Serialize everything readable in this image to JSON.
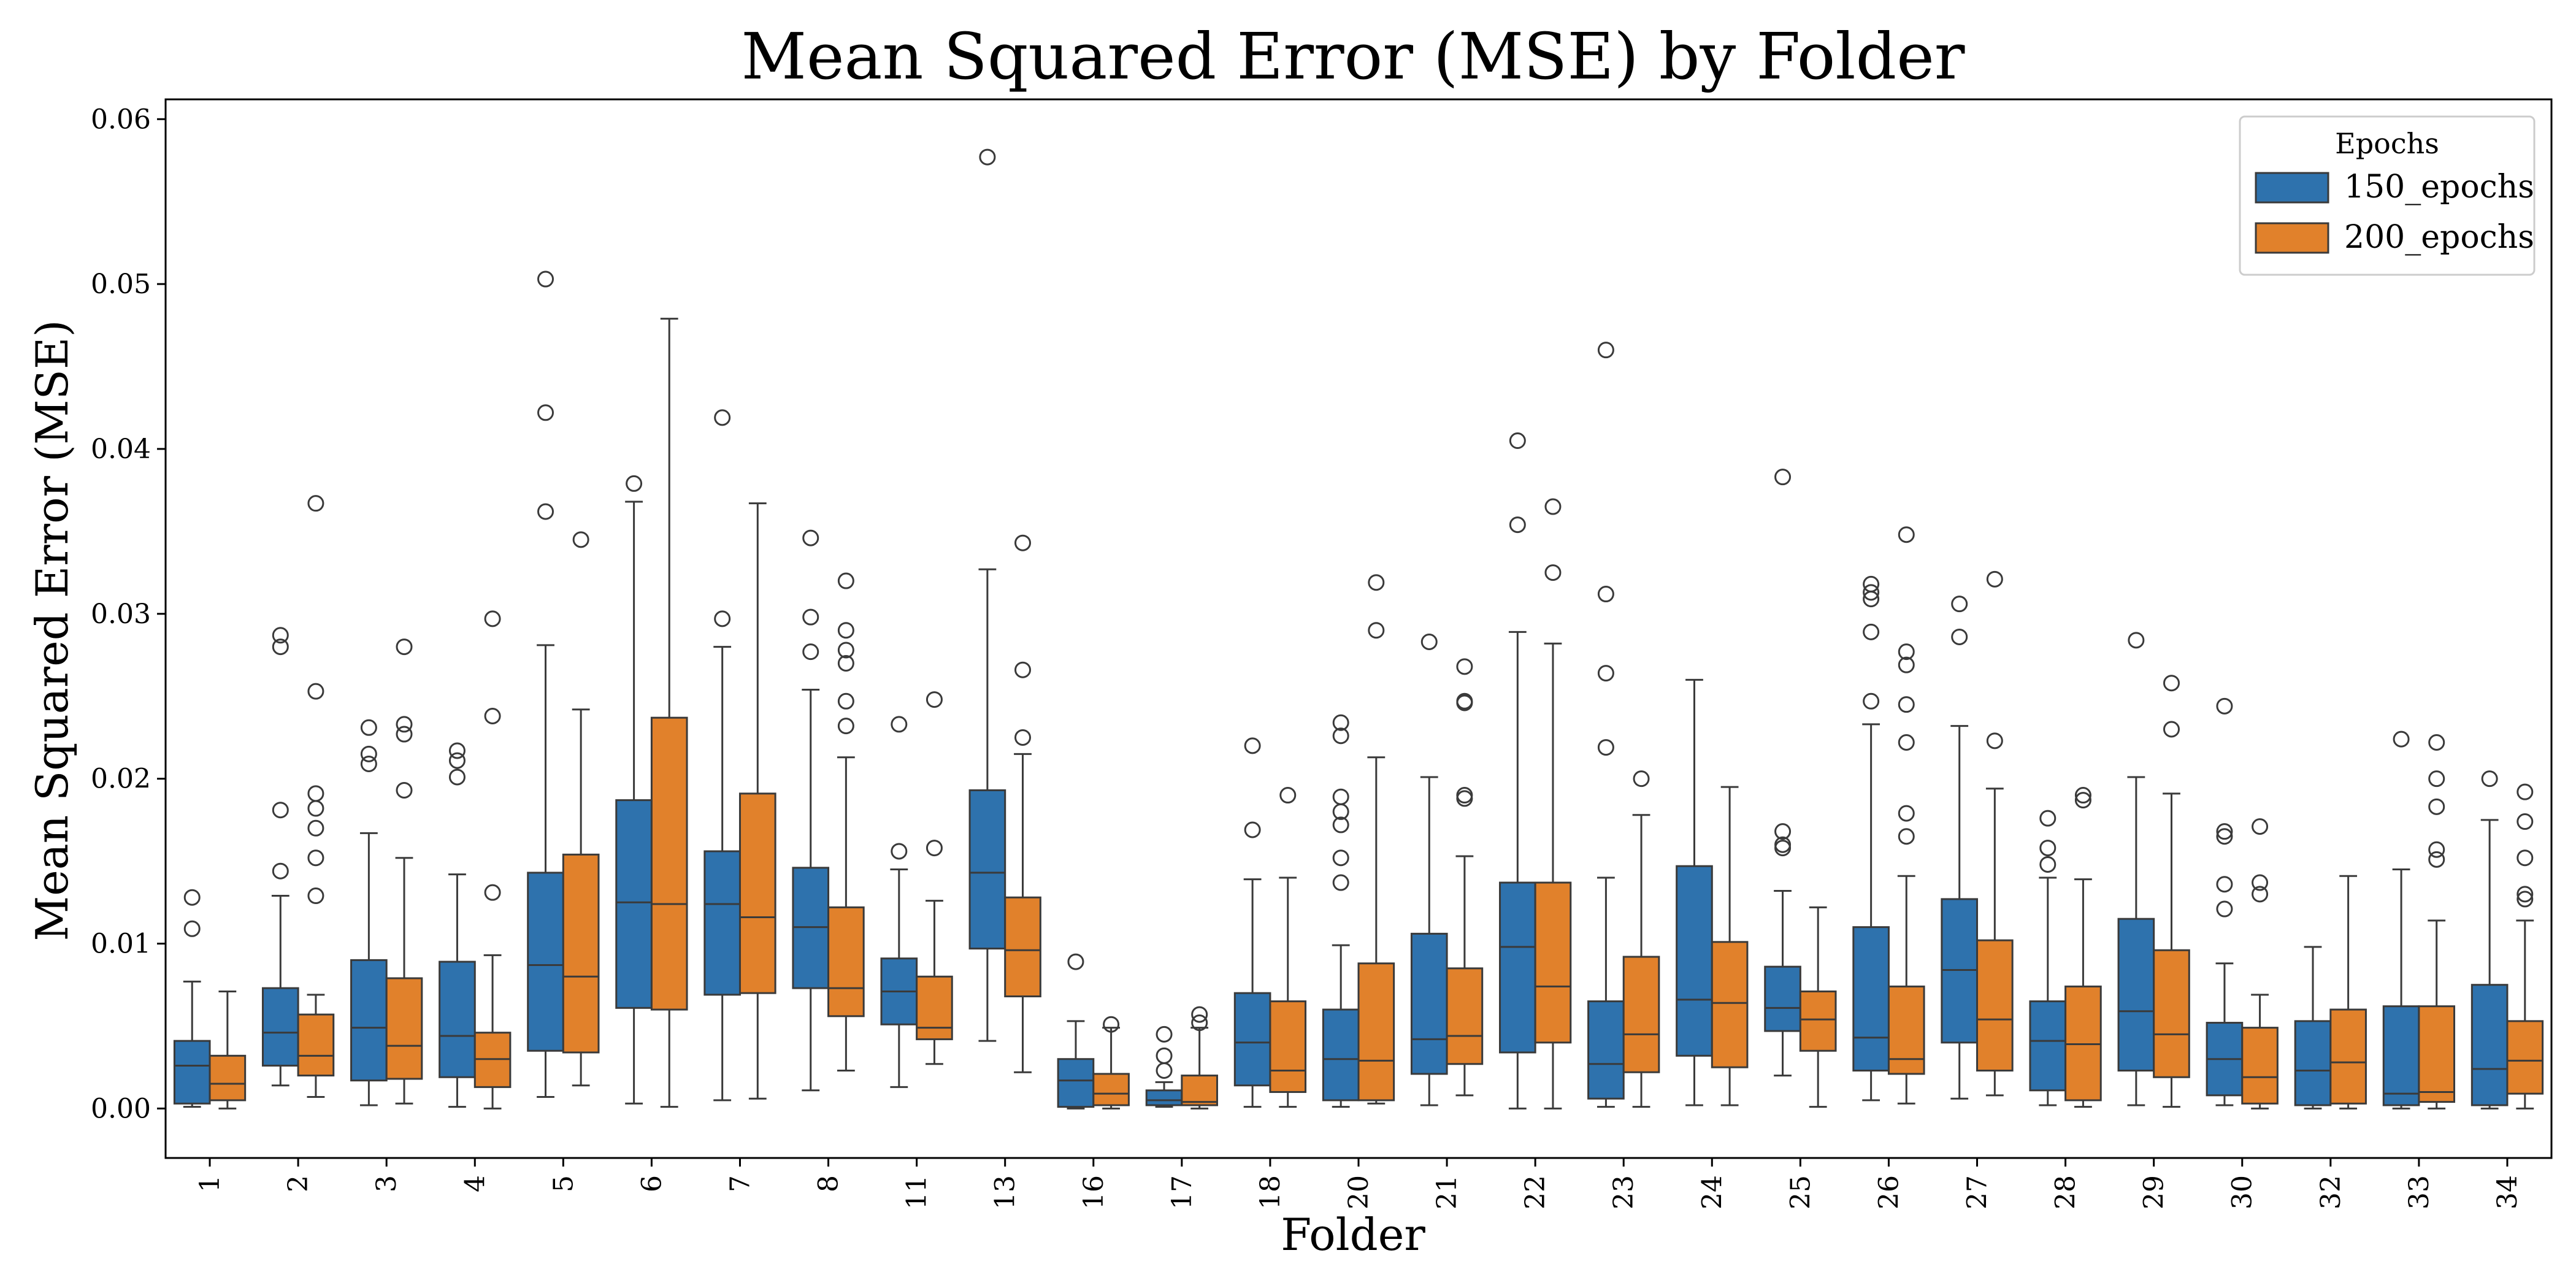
{
  "chart_data": {
    "type": "boxplot",
    "title": "Mean Squared Error (MSE) by Folder",
    "xlabel": "Folder",
    "ylabel": "Mean Squared Error (MSE)",
    "ylim": [
      -0.003,
      0.0612
    ],
    "yticks": [
      "0.00",
      "0.01",
      "0.02",
      "0.03",
      "0.04",
      "0.05",
      "0.06"
    ],
    "ytick_values": [
      0,
      0.01,
      0.02,
      0.03,
      0.04,
      0.05,
      0.06
    ],
    "grid": false,
    "legend": {
      "title": "Epochs",
      "position": "top-right"
    },
    "categories": [
      "1",
      "2",
      "3",
      "4",
      "5",
      "6",
      "7",
      "8",
      "11",
      "13",
      "16",
      "17",
      "18",
      "20",
      "21",
      "22",
      "23",
      "24",
      "25",
      "26",
      "27",
      "28",
      "29",
      "30",
      "32",
      "33",
      "34"
    ],
    "series": [
      {
        "name": "150_epochs",
        "color": "#2e72ad",
        "boxes": [
          {
            "low": 0.0001,
            "q1": 0.0003,
            "median": 0.0026,
            "q3": 0.0041,
            "high": 0.0077,
            "outliers": [
              0.0109,
              0.0128
            ]
          },
          {
            "low": 0.0014,
            "q1": 0.0026,
            "median": 0.0046,
            "q3": 0.0073,
            "high": 0.0129,
            "outliers": [
              0.0144,
              0.0181,
              0.028,
              0.0287
            ]
          },
          {
            "low": 0.0002,
            "q1": 0.0017,
            "median": 0.0049,
            "q3": 0.009,
            "high": 0.0167,
            "outliers": [
              0.0209,
              0.0215,
              0.0231
            ]
          },
          {
            "low": 0.0001,
            "q1": 0.0019,
            "median": 0.0044,
            "q3": 0.0089,
            "high": 0.0142,
            "outliers": [
              0.0201,
              0.0211,
              0.0217
            ]
          },
          {
            "low": 0.0007,
            "q1": 0.0035,
            "median": 0.0087,
            "q3": 0.0143,
            "high": 0.0281,
            "outliers": [
              0.0362,
              0.0422,
              0.0503
            ]
          },
          {
            "low": 0.0003,
            "q1": 0.0061,
            "median": 0.0125,
            "q3": 0.0187,
            "high": 0.0368,
            "outliers": [
              0.0379
            ]
          },
          {
            "low": 0.0005,
            "q1": 0.0069,
            "median": 0.0124,
            "q3": 0.0156,
            "high": 0.028,
            "outliers": [
              0.0297,
              0.0419
            ]
          },
          {
            "low": 0.0011,
            "q1": 0.0073,
            "median": 0.011,
            "q3": 0.0146,
            "high": 0.0254,
            "outliers": [
              0.0277,
              0.0298,
              0.0346
            ]
          },
          {
            "low": 0.0013,
            "q1": 0.0051,
            "median": 0.0071,
            "q3": 0.0091,
            "high": 0.0145,
            "outliers": [
              0.0156,
              0.0233
            ]
          },
          {
            "low": 0.0041,
            "q1": 0.0097,
            "median": 0.0143,
            "q3": 0.0193,
            "high": 0.0327,
            "outliers": [
              0.0577
            ]
          },
          {
            "low": 0.0,
            "q1": 0.0001,
            "median": 0.0017,
            "q3": 0.003,
            "high": 0.0053,
            "outliers": [
              0.0089
            ]
          },
          {
            "low": 0.0001,
            "q1": 0.0002,
            "median": 0.0005,
            "q3": 0.0011,
            "high": 0.0016,
            "outliers": [
              0.0023,
              0.0032,
              0.0045
            ]
          },
          {
            "low": 0.0001,
            "q1": 0.0014,
            "median": 0.004,
            "q3": 0.007,
            "high": 0.0139,
            "outliers": [
              0.0169,
              0.022
            ]
          },
          {
            "low": 0.0001,
            "q1": 0.0005,
            "median": 0.003,
            "q3": 0.006,
            "high": 0.0099,
            "outliers": [
              0.0137,
              0.0152,
              0.0172,
              0.018,
              0.0189,
              0.0226,
              0.0234
            ]
          },
          {
            "low": 0.0002,
            "q1": 0.0021,
            "median": 0.0042,
            "q3": 0.0106,
            "high": 0.0201,
            "outliers": [
              0.0283
            ]
          },
          {
            "low": 0.0,
            "q1": 0.0034,
            "median": 0.0098,
            "q3": 0.0137,
            "high": 0.0289,
            "outliers": [
              0.0354,
              0.0405
            ]
          },
          {
            "low": 0.0001,
            "q1": 0.0006,
            "median": 0.0027,
            "q3": 0.0065,
            "high": 0.014,
            "outliers": [
              0.0219,
              0.0264,
              0.0312,
              0.046
            ]
          },
          {
            "low": 0.0002,
            "q1": 0.0032,
            "median": 0.0066,
            "q3": 0.0147,
            "high": 0.026,
            "outliers": []
          },
          {
            "low": 0.002,
            "q1": 0.0047,
            "median": 0.0061,
            "q3": 0.0086,
            "high": 0.0132,
            "outliers": [
              0.0158,
              0.016,
              0.0168,
              0.0383
            ]
          },
          {
            "low": 0.0005,
            "q1": 0.0023,
            "median": 0.0043,
            "q3": 0.011,
            "high": 0.0233,
            "outliers": [
              0.0247,
              0.0289,
              0.0309,
              0.0313,
              0.0318
            ]
          },
          {
            "low": 0.0006,
            "q1": 0.004,
            "median": 0.0084,
            "q3": 0.0127,
            "high": 0.0232,
            "outliers": [
              0.0286,
              0.0306
            ]
          },
          {
            "low": 0.0002,
            "q1": 0.0011,
            "median": 0.0041,
            "q3": 0.0065,
            "high": 0.014,
            "outliers": [
              0.0148,
              0.0158,
              0.0176
            ]
          },
          {
            "low": 0.0002,
            "q1": 0.0023,
            "median": 0.0059,
            "q3": 0.0115,
            "high": 0.0201,
            "outliers": [
              0.0284
            ]
          },
          {
            "low": 0.0002,
            "q1": 0.0008,
            "median": 0.003,
            "q3": 0.0052,
            "high": 0.0088,
            "outliers": [
              0.0121,
              0.0136,
              0.0165,
              0.0168,
              0.0244
            ]
          },
          {
            "low": 0.0,
            "q1": 0.0002,
            "median": 0.0023,
            "q3": 0.0053,
            "high": 0.0098,
            "outliers": []
          },
          {
            "low": 0.0,
            "q1": 0.0002,
            "median": 0.0009,
            "q3": 0.0062,
            "high": 0.0145,
            "outliers": [
              0.0224
            ]
          },
          {
            "low": 0.0,
            "q1": 0.0002,
            "median": 0.0024,
            "q3": 0.0075,
            "high": 0.0175,
            "outliers": [
              0.02
            ]
          }
        ]
      },
      {
        "name": "200_epochs",
        "color": "#e1812b",
        "boxes": [
          {
            "low": 0.0,
            "q1": 0.0005,
            "median": 0.0015,
            "q3": 0.0032,
            "high": 0.0071,
            "outliers": []
          },
          {
            "low": 0.0007,
            "q1": 0.002,
            "median": 0.0032,
            "q3": 0.0057,
            "high": 0.0069,
            "outliers": [
              0.0129,
              0.0152,
              0.017,
              0.0182,
              0.0191,
              0.0253,
              0.0367
            ]
          },
          {
            "low": 0.0003,
            "q1": 0.0018,
            "median": 0.0038,
            "q3": 0.0079,
            "high": 0.0152,
            "outliers": [
              0.0193,
              0.0227,
              0.0233,
              0.028
            ]
          },
          {
            "low": 0.0,
            "q1": 0.0013,
            "median": 0.003,
            "q3": 0.0046,
            "high": 0.0093,
            "outliers": [
              0.0131,
              0.0238,
              0.0297
            ]
          },
          {
            "low": 0.0014,
            "q1": 0.0034,
            "median": 0.008,
            "q3": 0.0154,
            "high": 0.0242,
            "outliers": [
              0.0345
            ]
          },
          {
            "low": 0.0001,
            "q1": 0.006,
            "median": 0.0124,
            "q3": 0.0237,
            "high": 0.0479,
            "outliers": []
          },
          {
            "low": 0.0006,
            "q1": 0.007,
            "median": 0.0116,
            "q3": 0.0191,
            "high": 0.0367,
            "outliers": []
          },
          {
            "low": 0.0023,
            "q1": 0.0056,
            "median": 0.0073,
            "q3": 0.0122,
            "high": 0.0213,
            "outliers": [
              0.0232,
              0.0247,
              0.027,
              0.0278,
              0.029,
              0.032
            ]
          },
          {
            "low": 0.0027,
            "q1": 0.0042,
            "median": 0.0049,
            "q3": 0.008,
            "high": 0.0126,
            "outliers": [
              0.0158,
              0.0248
            ]
          },
          {
            "low": 0.0022,
            "q1": 0.0068,
            "median": 0.0096,
            "q3": 0.0128,
            "high": 0.0215,
            "outliers": [
              0.0225,
              0.0266,
              0.0343
            ]
          },
          {
            "low": 0.0,
            "q1": 0.0002,
            "median": 0.0009,
            "q3": 0.0021,
            "high": 0.0049,
            "outliers": [
              0.0051
            ]
          },
          {
            "low": 0.0,
            "q1": 0.0002,
            "median": 0.0004,
            "q3": 0.002,
            "high": 0.0049,
            "outliers": [
              0.0052,
              0.0057
            ]
          },
          {
            "low": 0.0001,
            "q1": 0.001,
            "median": 0.0023,
            "q3": 0.0065,
            "high": 0.014,
            "outliers": [
              0.019
            ]
          },
          {
            "low": 0.0003,
            "q1": 0.0005,
            "median": 0.0029,
            "q3": 0.0088,
            "high": 0.0213,
            "outliers": [
              0.029,
              0.0319
            ]
          },
          {
            "low": 0.0008,
            "q1": 0.0027,
            "median": 0.0044,
            "q3": 0.0085,
            "high": 0.0153,
            "outliers": [
              0.0188,
              0.019,
              0.0246,
              0.0247,
              0.0268
            ]
          },
          {
            "low": 0.0,
            "q1": 0.004,
            "median": 0.0074,
            "q3": 0.0137,
            "high": 0.0282,
            "outliers": [
              0.0325,
              0.0365
            ]
          },
          {
            "low": 0.0001,
            "q1": 0.0022,
            "median": 0.0045,
            "q3": 0.0092,
            "high": 0.0178,
            "outliers": [
              0.02
            ]
          },
          {
            "low": 0.0002,
            "q1": 0.0025,
            "median": 0.0064,
            "q3": 0.0101,
            "high": 0.0195,
            "outliers": []
          },
          {
            "low": 0.0001,
            "q1": 0.0035,
            "median": 0.0054,
            "q3": 0.0071,
            "high": 0.0122,
            "outliers": []
          },
          {
            "low": 0.0003,
            "q1": 0.0021,
            "median": 0.003,
            "q3": 0.0074,
            "high": 0.0141,
            "outliers": [
              0.0165,
              0.0179,
              0.0222,
              0.0245,
              0.0269,
              0.0277,
              0.0348
            ]
          },
          {
            "low": 0.0008,
            "q1": 0.0023,
            "median": 0.0054,
            "q3": 0.0102,
            "high": 0.0194,
            "outliers": [
              0.0223,
              0.0321
            ]
          },
          {
            "low": 0.0001,
            "q1": 0.0005,
            "median": 0.0039,
            "q3": 0.0074,
            "high": 0.0139,
            "outliers": [
              0.0187,
              0.019
            ]
          },
          {
            "low": 0.0001,
            "q1": 0.0019,
            "median": 0.0045,
            "q3": 0.0096,
            "high": 0.0191,
            "outliers": [
              0.023,
              0.0258
            ]
          },
          {
            "low": 0.0,
            "q1": 0.0003,
            "median": 0.0019,
            "q3": 0.0049,
            "high": 0.0069,
            "outliers": [
              0.013,
              0.0137,
              0.0171
            ]
          },
          {
            "low": 0.0,
            "q1": 0.0003,
            "median": 0.0028,
            "q3": 0.006,
            "high": 0.0141,
            "outliers": []
          },
          {
            "low": 0.0,
            "q1": 0.0004,
            "median": 0.001,
            "q3": 0.0062,
            "high": 0.0114,
            "outliers": [
              0.0151,
              0.0157,
              0.0183,
              0.02,
              0.0222
            ]
          },
          {
            "low": 0.0,
            "q1": 0.0009,
            "median": 0.0029,
            "q3": 0.0053,
            "high": 0.0114,
            "outliers": [
              0.0127,
              0.013,
              0.0152,
              0.0174,
              0.0192
            ]
          }
        ]
      }
    ]
  }
}
